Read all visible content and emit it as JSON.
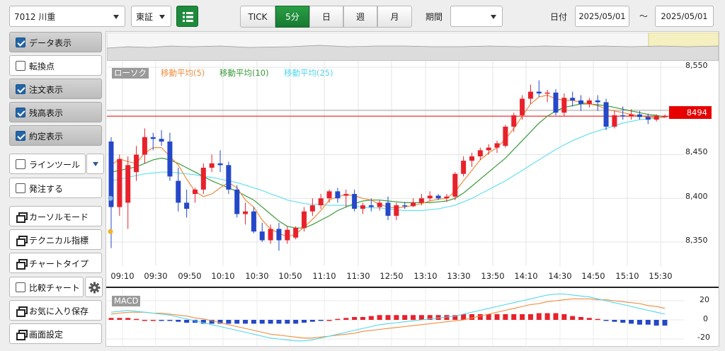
{
  "toolbar": {
    "symbol": "7012 川重",
    "market": "東証",
    "interval_tabs": [
      "TICK",
      "5分",
      "日",
      "週",
      "月"
    ],
    "active_interval": "5分",
    "period_label": "期間",
    "period_value": "",
    "date_label": "日付",
    "date_from": "2025/05/01",
    "date_sep": "〜",
    "date_to": "2025/05/01"
  },
  "sidebar": {
    "items": [
      {
        "label": "データ表示",
        "type": "check",
        "checked": true
      },
      {
        "label": "転換点",
        "type": "check",
        "checked": false
      },
      {
        "label": "注文表示",
        "type": "check",
        "checked": true
      },
      {
        "label": "残高表示",
        "type": "check",
        "checked": true
      },
      {
        "label": "約定表示",
        "type": "check",
        "checked": true
      },
      {
        "label": "ラインツール",
        "type": "check",
        "checked": false
      },
      {
        "label": "発注する",
        "type": "check",
        "checked": false
      },
      {
        "label": "カーソルモード",
        "type": "window"
      },
      {
        "label": "テクニカル指標",
        "type": "window"
      },
      {
        "label": "チャートタイプ",
        "type": "window"
      },
      {
        "label": "比較チャート",
        "type": "check",
        "checked": false
      },
      {
        "label": "お気に入り保存",
        "type": "window"
      },
      {
        "label": "画面設定",
        "type": "window"
      }
    ]
  },
  "legend": {
    "candle": "ローソク",
    "ma5": "移動平均(5)",
    "ma10": "移動平均(10)",
    "ma25": "移動平均(25)"
  },
  "colors": {
    "up": "#e8212b",
    "down": "#2448c8",
    "ma5": "#f08c3c",
    "ma10": "#3a9a3a",
    "ma25": "#66e0f0",
    "price_marker": "#e60000"
  },
  "chart_data": [
    {
      "type": "candlestick",
      "title": "",
      "ylim": [
        8330,
        8560
      ],
      "yticks": [
        "8,550",
        "8,450",
        "8,400",
        "8,350"
      ],
      "xticks": [
        "09:10",
        "09:30",
        "09:50",
        "10:10",
        "10:30",
        "10:50",
        "11:10",
        "11:30",
        "12:50",
        "13:10",
        "13:30",
        "13:50",
        "14:10",
        "14:30",
        "14:50",
        "15:10",
        "15:30"
      ],
      "current_price": 8494,
      "current_price_label": "8494",
      "candles": [
        {
          "o": 8465,
          "h": 8470,
          "l": 8343,
          "c": 8390
        },
        {
          "o": 8390,
          "h": 8450,
          "l": 8380,
          "c": 8445
        },
        {
          "o": 8395,
          "h": 8448,
          "l": 8365,
          "c": 8438
        },
        {
          "o": 8430,
          "h": 8460,
          "l": 8420,
          "c": 8450
        },
        {
          "o": 8450,
          "h": 8480,
          "l": 8440,
          "c": 8470
        },
        {
          "o": 8470,
          "h": 8475,
          "l": 8455,
          "c": 8468
        },
        {
          "o": 8468,
          "h": 8478,
          "l": 8460,
          "c": 8465
        },
        {
          "o": 8465,
          "h": 8475,
          "l": 8420,
          "c": 8425
        },
        {
          "o": 8420,
          "h": 8435,
          "l": 8385,
          "c": 8395
        },
        {
          "o": 8395,
          "h": 8410,
          "l": 8378,
          "c": 8388
        },
        {
          "o": 8405,
          "h": 8412,
          "l": 8395,
          "c": 8410
        },
        {
          "o": 8410,
          "h": 8440,
          "l": 8405,
          "c": 8435
        },
        {
          "o": 8435,
          "h": 8450,
          "l": 8430,
          "c": 8440
        },
        {
          "o": 8440,
          "h": 8455,
          "l": 8430,
          "c": 8438
        },
        {
          "o": 8438,
          "h": 8442,
          "l": 8405,
          "c": 8410
        },
        {
          "o": 8410,
          "h": 8415,
          "l": 8378,
          "c": 8382
        },
        {
          "o": 8382,
          "h": 8395,
          "l": 8370,
          "c": 8385
        },
        {
          "o": 8385,
          "h": 8390,
          "l": 8360,
          "c": 8362
        },
        {
          "o": 8362,
          "h": 8372,
          "l": 8350,
          "c": 8352
        },
        {
          "o": 8352,
          "h": 8370,
          "l": 8348,
          "c": 8365
        },
        {
          "o": 8365,
          "h": 8372,
          "l": 8340,
          "c": 8352
        },
        {
          "o": 8352,
          "h": 8368,
          "l": 8348,
          "c": 8364
        },
        {
          "o": 8355,
          "h": 8368,
          "l": 8353,
          "c": 8366
        },
        {
          "o": 8366,
          "h": 8390,
          "l": 8362,
          "c": 8385
        },
        {
          "o": 8385,
          "h": 8400,
          "l": 8380,
          "c": 8392
        },
        {
          "o": 8392,
          "h": 8405,
          "l": 8388,
          "c": 8400
        },
        {
          "o": 8400,
          "h": 8410,
          "l": 8395,
          "c": 8408
        },
        {
          "o": 8408,
          "h": 8412,
          "l": 8395,
          "c": 8400
        },
        {
          "o": 8403,
          "h": 8410,
          "l": 8390,
          "c": 8405
        },
        {
          "o": 8405,
          "h": 8410,
          "l": 8385,
          "c": 8388
        },
        {
          "o": 8388,
          "h": 8395,
          "l": 8382,
          "c": 8392
        },
        {
          "o": 8392,
          "h": 8400,
          "l": 8385,
          "c": 8390
        },
        {
          "o": 8390,
          "h": 8398,
          "l": 8386,
          "c": 8395
        },
        {
          "o": 8395,
          "h": 8402,
          "l": 8375,
          "c": 8380
        },
        {
          "o": 8380,
          "h": 8395,
          "l": 8375,
          "c": 8392
        },
        {
          "o": 8392,
          "h": 8396,
          "l": 8388,
          "c": 8391
        },
        {
          "o": 8391,
          "h": 8400,
          "l": 8390,
          "c": 8395
        },
        {
          "o": 8395,
          "h": 8405,
          "l": 8392,
          "c": 8400
        },
        {
          "o": 8400,
          "h": 8408,
          "l": 8397,
          "c": 8403
        },
        {
          "o": 8403,
          "h": 8405,
          "l": 8398,
          "c": 8400
        },
        {
          "o": 8400,
          "h": 8405,
          "l": 8396,
          "c": 8402
        },
        {
          "o": 8402,
          "h": 8430,
          "l": 8398,
          "c": 8428
        },
        {
          "o": 8428,
          "h": 8448,
          "l": 8425,
          "c": 8443
        },
        {
          "o": 8443,
          "h": 8452,
          "l": 8436,
          "c": 8448
        },
        {
          "o": 8448,
          "h": 8458,
          "l": 8444,
          "c": 8455
        },
        {
          "o": 8455,
          "h": 8462,
          "l": 8450,
          "c": 8458
        },
        {
          "o": 8458,
          "h": 8466,
          "l": 8452,
          "c": 8463
        },
        {
          "o": 8460,
          "h": 8484,
          "l": 8458,
          "c": 8482
        },
        {
          "o": 8482,
          "h": 8498,
          "l": 8476,
          "c": 8495
        },
        {
          "o": 8495,
          "h": 8518,
          "l": 8490,
          "c": 8514
        },
        {
          "o": 8514,
          "h": 8530,
          "l": 8508,
          "c": 8522
        },
        {
          "o": 8522,
          "h": 8535,
          "l": 8516,
          "c": 8520
        },
        {
          "o": 8520,
          "h": 8524,
          "l": 8510,
          "c": 8521
        },
        {
          "o": 8521,
          "h": 8525,
          "l": 8495,
          "c": 8498
        },
        {
          "o": 8498,
          "h": 8520,
          "l": 8494,
          "c": 8515
        },
        {
          "o": 8515,
          "h": 8522,
          "l": 8505,
          "c": 8512
        },
        {
          "o": 8512,
          "h": 8518,
          "l": 8500,
          "c": 8508
        },
        {
          "o": 8508,
          "h": 8515,
          "l": 8504,
          "c": 8512
        },
        {
          "o": 8512,
          "h": 8518,
          "l": 8500,
          "c": 8510
        },
        {
          "o": 8510,
          "h": 8514,
          "l": 8478,
          "c": 8482
        },
        {
          "o": 8482,
          "h": 8500,
          "l": 8480,
          "c": 8495
        },
        {
          "o": 8495,
          "h": 8505,
          "l": 8490,
          "c": 8494
        },
        {
          "o": 8494,
          "h": 8502,
          "l": 8490,
          "c": 8496
        },
        {
          "o": 8496,
          "h": 8500,
          "l": 8490,
          "c": 8493
        },
        {
          "o": 8493,
          "h": 8497,
          "l": 8485,
          "c": 8490
        },
        {
          "o": 8490,
          "h": 8496,
          "l": 8488,
          "c": 8494
        },
        {
          "o": 8494,
          "h": 8496,
          "l": 8492,
          "c": 8494
        }
      ],
      "ma5": [
        8438,
        8445,
        8442,
        8440,
        8452,
        8458,
        8458,
        8448,
        8438,
        8422,
        8408,
        8402,
        8405,
        8412,
        8418,
        8412,
        8398,
        8390,
        8375,
        8365,
        8360,
        8356,
        8359,
        8367,
        8376,
        8386,
        8398,
        8402,
        8404,
        8403,
        8400,
        8398,
        8393,
        8390,
        8389,
        8390,
        8392,
        8394,
        8397,
        8399,
        8400,
        8408,
        8420,
        8432,
        8444,
        8452,
        8458,
        8468,
        8480,
        8494,
        8508,
        8516,
        8518,
        8514,
        8512,
        8512,
        8510,
        8508,
        8506,
        8502,
        8500,
        8498,
        8496,
        8494,
        8493,
        8492,
        8493
      ],
      "ma10": [
        8430,
        8432,
        8434,
        8436,
        8440,
        8444,
        8446,
        8444,
        8440,
        8435,
        8430,
        8425,
        8420,
        8416,
        8412,
        8408,
        8403,
        8398,
        8390,
        8382,
        8374,
        8368,
        8366,
        8366,
        8370,
        8375,
        8380,
        8386,
        8390,
        8394,
        8397,
        8398,
        8398,
        8397,
        8396,
        8395,
        8395,
        8395,
        8395,
        8396,
        8397,
        8400,
        8406,
        8414,
        8422,
        8430,
        8438,
        8446,
        8456,
        8466,
        8476,
        8486,
        8494,
        8500,
        8504,
        8506,
        8508,
        8508,
        8507,
        8506,
        8504,
        8502,
        8500,
        8498,
        8496,
        8495,
        8493
      ],
      "ma25": [
        8420,
        8422,
        8424,
        8426,
        8428,
        8429,
        8430,
        8430,
        8429,
        8428,
        8427,
        8425,
        8424,
        8422,
        8420,
        8418,
        8415,
        8412,
        8409,
        8405,
        8402,
        8398,
        8396,
        8394,
        8393,
        8393,
        8392,
        8392,
        8392,
        8391,
        8390,
        8389,
        8389,
        8388,
        8387,
        8386,
        8386,
        8386,
        8387,
        8388,
        8390,
        8392,
        8396,
        8400,
        8405,
        8410,
        8415,
        8420,
        8426,
        8432,
        8438,
        8444,
        8450,
        8456,
        8461,
        8466,
        8470,
        8474,
        8477,
        8480,
        8483,
        8486,
        8488,
        8490,
        8491,
        8492,
        8493
      ]
    },
    {
      "type": "bar",
      "title": "MACD",
      "ylim": [
        -25,
        28
      ],
      "yticks": [
        "20",
        "0",
        "-20"
      ],
      "macd": [
        8,
        9,
        10,
        9,
        8,
        7,
        6,
        5,
        3,
        1,
        -1,
        -3,
        -5,
        -7,
        -9,
        -11,
        -13,
        -15,
        -17,
        -19,
        -20,
        -21,
        -22,
        -22,
        -21,
        -19,
        -17,
        -15,
        -13,
        -11,
        -9,
        -7,
        -5,
        -4,
        -3,
        -2,
        -1,
        0,
        1,
        2,
        3,
        4,
        6,
        8,
        10,
        12,
        14,
        16,
        18,
        20,
        22,
        24,
        26,
        27,
        27,
        26,
        25,
        24,
        22,
        20,
        18,
        16,
        14,
        12,
        10,
        8,
        6
      ],
      "signal": [
        6,
        7,
        8,
        8,
        8,
        7,
        7,
        6,
        5,
        4,
        2,
        1,
        -1,
        -3,
        -5,
        -7,
        -9,
        -11,
        -13,
        -15,
        -16,
        -17,
        -18,
        -19,
        -19,
        -18,
        -17,
        -16,
        -15,
        -14,
        -12,
        -11,
        -10,
        -9,
        -8,
        -7,
        -6,
        -5,
        -4,
        -3,
        -2,
        -1,
        0,
        2,
        4,
        6,
        8,
        10,
        12,
        14,
        16,
        17,
        19,
        20,
        21,
        22,
        22,
        22,
        21,
        21,
        20,
        19,
        18,
        17,
        15,
        14,
        12
      ],
      "histogram": [
        2,
        2,
        2,
        1,
        0,
        0,
        -1,
        -1,
        -2,
        -3,
        -3,
        -4,
        -4,
        -4,
        -4,
        -4,
        -4,
        -4,
        -4,
        -4,
        -4,
        -4,
        -4,
        -3,
        -2,
        -1,
        0,
        1,
        2,
        3,
        3,
        4,
        5,
        5,
        5,
        5,
        5,
        5,
        5,
        5,
        5,
        5,
        6,
        6,
        6,
        6,
        6,
        6,
        6,
        6,
        6,
        7,
        7,
        7,
        6,
        4,
        3,
        2,
        1,
        -1,
        -2,
        -3,
        -4,
        -5,
        -5,
        -6,
        -6
      ]
    }
  ]
}
